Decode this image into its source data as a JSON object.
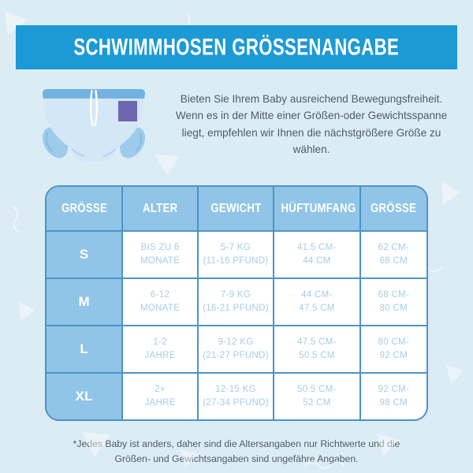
{
  "banner": {
    "title": "SCHWIMMHOSEN GRÖSSENANGABE"
  },
  "intro": {
    "text": "Bieten Sie Ihrem Baby ausreichend Bewegungsfreiheit. Wenn es in der Mitte einer Größen-oder Gewichtsspanne liegt, empfehlen wir Ihnen die nächstgrößere Größe zu wählen.",
    "illustration": "swim-diaper"
  },
  "size_table": {
    "columns": [
      "GRÖSSE",
      "ALTER",
      "GEWICHT",
      "HÜFTUMFANG",
      "GRÖSSE"
    ],
    "rows": [
      {
        "size": "S",
        "age": [
          "BIS ZU 6",
          "MONATE"
        ],
        "weight": [
          "5-7 KG",
          "(11-16 PFUND)"
        ],
        "hip": [
          "41.5 CM-",
          "44 CM"
        ],
        "height": [
          "62 CM-",
          "68 CM"
        ]
      },
      {
        "size": "M",
        "age": [
          "6-12",
          "MONATE"
        ],
        "weight": [
          "7-9 KG",
          "(16-21 PFUND)"
        ],
        "hip": [
          "44 CM-",
          "47.5 CM"
        ],
        "height": [
          "68 CM-",
          "80 CM"
        ]
      },
      {
        "size": "L",
        "age": [
          "1-2",
          "JAHRE"
        ],
        "weight": [
          "9-12 KG",
          "(21-27 PFUND)"
        ],
        "hip": [
          "47.5 CM-",
          "50.5 CM"
        ],
        "height": [
          "80 CM-",
          "92 CM"
        ]
      },
      {
        "size": "XL",
        "age": [
          "2+",
          "JAHRE"
        ],
        "weight": [
          "12-15 KG",
          "(27-34 PFUND)"
        ],
        "hip": [
          "50.5 CM-",
          "52 CM"
        ],
        "height": [
          "92 CM-",
          "98 CM"
        ]
      }
    ]
  },
  "footnote": {
    "text": "*Jedes Baby ist anders, daher sind die Altersangaben nur Richtwerte und die Größen- und Gewichtsangaben sind ungefähre Angaben."
  },
  "chart_data": {
    "type": "table",
    "title": "SCHWIMMHOSEN GRÖSSENANGABE",
    "columns": [
      "GRÖSSE",
      "ALTER",
      "GEWICHT",
      "HÜFTUMFANG",
      "GRÖSSE"
    ],
    "rows": [
      [
        "S",
        "BIS ZU 6 MONATE",
        "5-7 KG (11-16 PFUND)",
        "41.5 CM-44 CM",
        "62 CM-68 CM"
      ],
      [
        "M",
        "6-12 MONATE",
        "7-9 KG (16-21 PFUND)",
        "44 CM-47.5 CM",
        "68 CM-80 CM"
      ],
      [
        "L",
        "1-2 JAHRE",
        "9-12 KG (21-27 PFUND)",
        "47.5 CM-50.5 CM",
        "80 CM-92 CM"
      ],
      [
        "XL",
        "2+ JAHRE",
        "12-15 KG (27-34 PFUND)",
        "50.5 CM-52 CM",
        "92 CM-98 CM"
      ]
    ],
    "footnote": "*Jedes Baby ist anders, daher sind die Altersangaben nur Richtwerte und die Größen- und Gewichtsangaben sind ungefähre Angaben."
  },
  "colors": {
    "background": "#dcecf5",
    "banner_blue": "#1b9ad5",
    "table_fill_blue": "#90c5e7",
    "table_border_blue": "#4d94c4",
    "table_text_blue": "#a4cde8",
    "body_text": "#4d5c6a",
    "diaper_body": "#d3e7f7",
    "diaper_waistband": "#70b2e0",
    "diaper_tag_purple": "#6e66ae"
  }
}
